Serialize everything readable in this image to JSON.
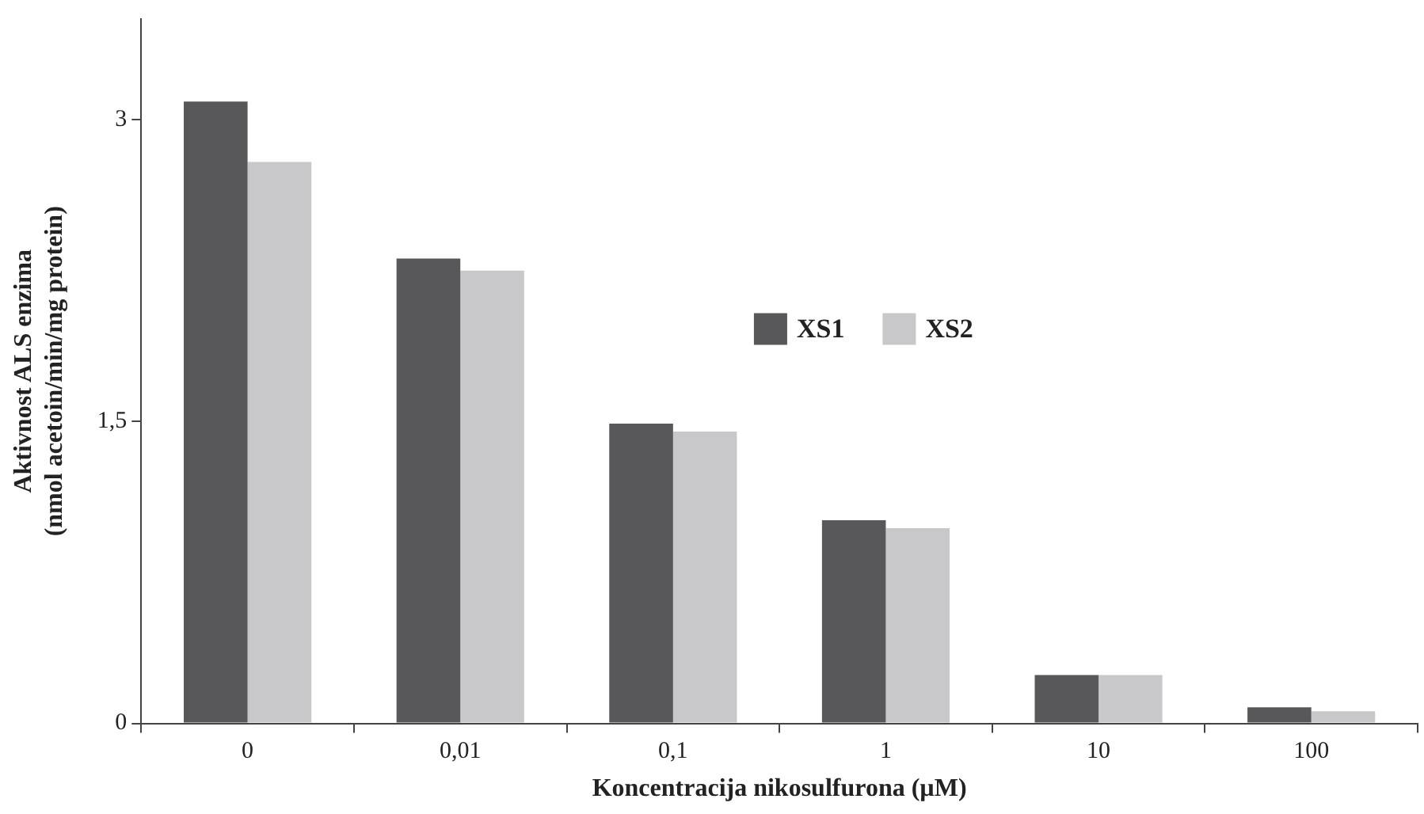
{
  "chart_data": {
    "type": "bar",
    "xlabel": "Koncentracija nikosulfurona (µM)",
    "ylabel": "Aktivnost ALS enzima\n(nmol acetoin/min/mg protein)",
    "categories": [
      "0",
      "0,01",
      "0,1",
      "1",
      "10",
      "100"
    ],
    "series": [
      {
        "name": "XS1",
        "color": "#58585a",
        "values": [
          3.09,
          2.31,
          1.49,
          1.01,
          0.24,
          0.08
        ]
      },
      {
        "name": "XS2",
        "color": "#c8c8ca",
        "values": [
          2.79,
          2.25,
          1.45,
          0.97,
          0.24,
          0.06
        ]
      }
    ],
    "ylim": [
      0,
      3.5
    ],
    "yticks": [
      0,
      {
        "value": 1.5,
        "label": "1,5"
      },
      3
    ],
    "grid": false,
    "legend": "top right"
  }
}
